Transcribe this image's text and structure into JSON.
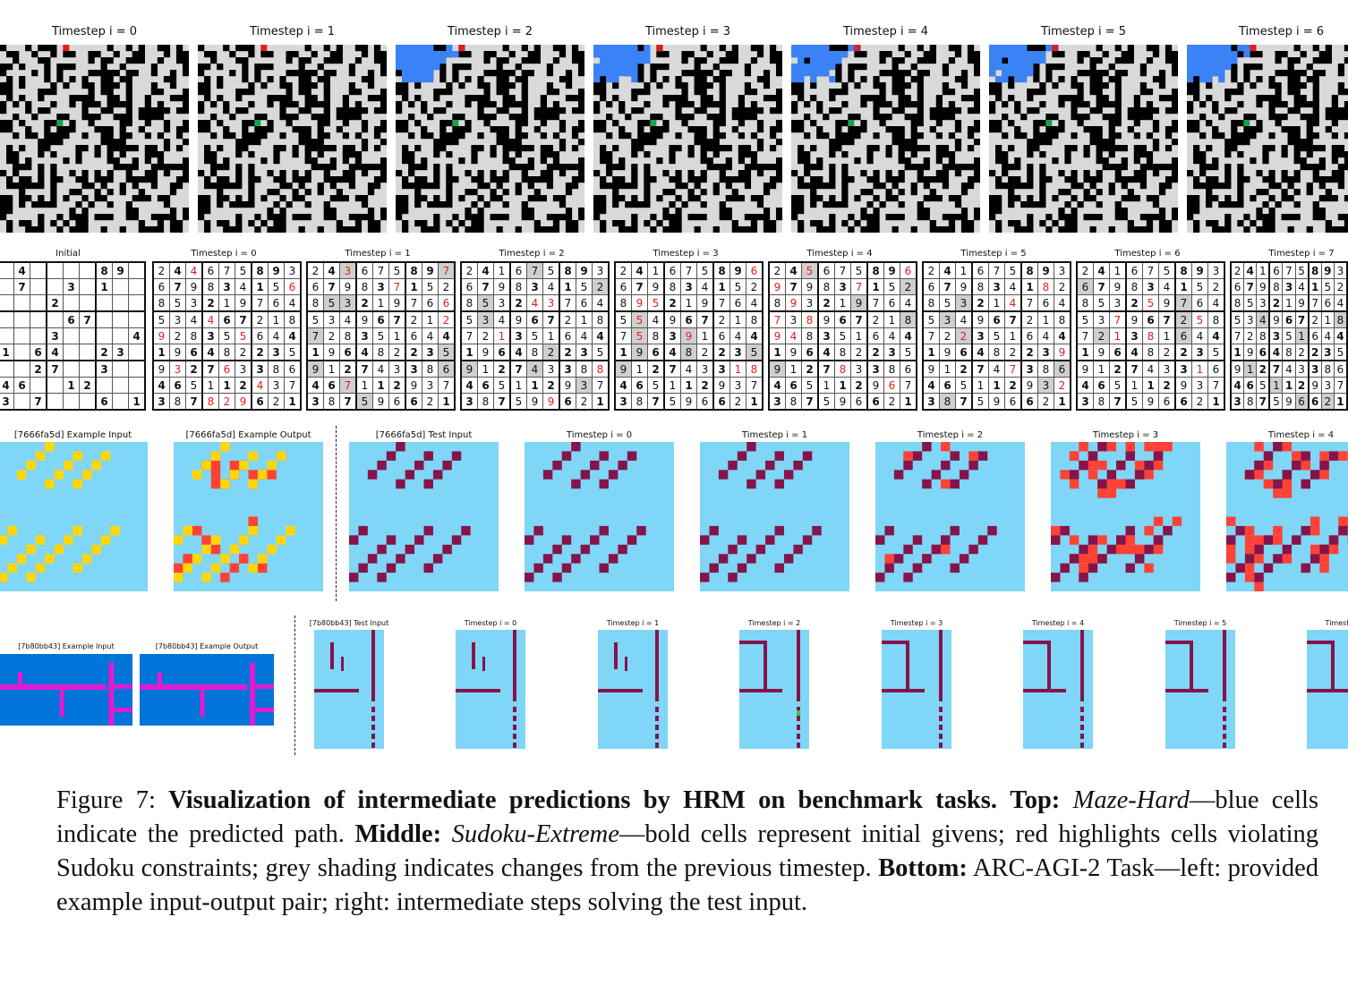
{
  "maze": {
    "titles": [
      "Timestep i = 0",
      "Timestep i = 1",
      "Timestep i = 2",
      "Timestep i = 3",
      "Timestep i = 4",
      "Timestep i = 5",
      "Timestep i = 6"
    ],
    "colors": {
      "wall": "#000000",
      "open": "#d9d9d9",
      "path": "#3b82f6",
      "start": "#e11d1d",
      "goal": "#16a34a"
    }
  },
  "sudoku": {
    "titles": [
      "Initial",
      "Timestep i = 0",
      "Timestep i = 1",
      "Timestep i = 2",
      "Timestep i = 3",
      "Timestep i = 4",
      "Timestep i = 5",
      "Timestep i = 6",
      "Timestep i = 7"
    ],
    "initial": [
      "4....89.",
      "7...3.1..",
      "...2.....",
      "....67...",
      "...3....4",
      "1.64..23.",
      "..27..3..",
      "46..12...",
      "3.7...6..1"
    ]
  },
  "arc1": {
    "titles": [
      "[7666fa5d] Example Input",
      "[7666fa5d] Example Output",
      "[7666fa5d] Test Input",
      "Timestep i = 0",
      "Timestep i = 1",
      "Timestep i = 2",
      "Timestep i = 3",
      "Timestep i = 4"
    ],
    "colors": {
      "bg": "#7fd6f7",
      "yellow": "#ffd60a",
      "red": "#ff4136",
      "maroon": "#85144b"
    }
  },
  "arc2": {
    "titles": [
      "[7b80bb43] Example Input",
      "[7b80bb43] Example Output",
      "[7b80bb43] Test Input",
      "Timestep i = 0",
      "Timestep i = 1",
      "Timestep i = 2",
      "Timestep i = 3",
      "Timestep i = 4",
      "Timestep i = 5",
      "Timestep"
    ],
    "colors": {
      "blue": "#0074d9",
      "magenta": "#e11bd1",
      "bg": "#7fd6f7",
      "maroon": "#85144b",
      "green": "#2ecc40"
    }
  },
  "caption": {
    "label": "Figure 7:",
    "title": "Visualization of intermediate predictions by HRM on benchmark tasks.",
    "top_label": "Top:",
    "top_task": "Maze-Hard",
    "top_text": "—blue cells indicate the predicted path.",
    "middle_label": "Middle:",
    "middle_task": "Sudoku-Extreme",
    "middle_text": "—bold cells represent initial givens; red highlights cells violating Sudoku constraints; grey shading indicates changes from the previous timestep.",
    "bottom_label": "Bottom:",
    "bottom_text": "ARC-AGI-2 Task—left: provided example input-output pair; right: intermediate steps solving the test input."
  }
}
